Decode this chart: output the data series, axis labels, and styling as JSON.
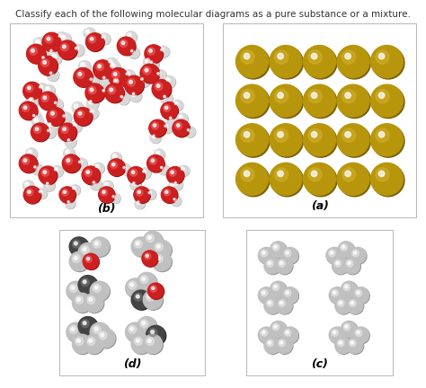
{
  "title": "Classify each of the following molecular diagrams as a pure substance or a mixture.",
  "title_fontsize": 7.5,
  "bg_color": "#ffffff",
  "panel_a": {
    "label": "(a)",
    "gold": "#b8960c",
    "gold_hl": "#d4b030",
    "gold_sh": "#7a6008",
    "rows": 4,
    "cols": 5
  },
  "panel_b": {
    "label": "(b)",
    "o_color": "#cc2020",
    "o_hl": "#ee6060",
    "o_sh": "#881010",
    "h_color": "#d8d8d8",
    "h_hl": "#ffffff",
    "h_sh": "#aaaaaa"
  },
  "panel_c": {
    "label": "(c)",
    "g_color": "#c0c0c0",
    "g_hl": "#e8e8e8",
    "g_sh": "#909090"
  },
  "panel_d": {
    "label": "(d)",
    "g_color": "#c0c0c0",
    "g_hl": "#e8e8e8",
    "g_sh": "#909090",
    "r_color": "#cc2020",
    "r_hl": "#ee6060",
    "r_sh": "#881010",
    "dk_color": "#444444",
    "dk_hl": "#777777",
    "dk_sh": "#222222"
  }
}
